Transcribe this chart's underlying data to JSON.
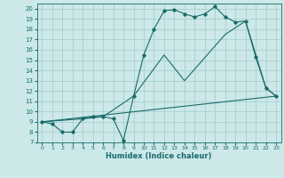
{
  "title": "",
  "xlabel": "Humidex (Indice chaleur)",
  "bg_color": "#cce8e8",
  "grid_color": "#aacfcf",
  "line_color": "#1a6b6b",
  "xlim": [
    -0.5,
    23.5
  ],
  "ylim": [
    7,
    20.5
  ],
  "xticks": [
    0,
    1,
    2,
    3,
    4,
    5,
    6,
    7,
    8,
    9,
    10,
    11,
    12,
    13,
    14,
    15,
    16,
    17,
    18,
    19,
    20,
    21,
    22,
    23
  ],
  "yticks": [
    7,
    8,
    9,
    10,
    11,
    12,
    13,
    14,
    15,
    16,
    17,
    18,
    19,
    20
  ],
  "series1_x": [
    0,
    1,
    2,
    3,
    4,
    5,
    6,
    7,
    8,
    9,
    10,
    11,
    12,
    13,
    14,
    15,
    16,
    17,
    18,
    19,
    20,
    21,
    22,
    23
  ],
  "series1_y": [
    9.0,
    8.8,
    8.0,
    8.0,
    9.3,
    9.5,
    9.5,
    9.3,
    7.2,
    11.5,
    15.5,
    18.0,
    19.8,
    19.9,
    19.5,
    19.2,
    19.5,
    20.2,
    19.2,
    18.7,
    18.8,
    15.3,
    12.3,
    11.5
  ],
  "series2_x": [
    0,
    4,
    6,
    9,
    12,
    14,
    18,
    20,
    22,
    23
  ],
  "series2_y": [
    9.0,
    9.3,
    9.5,
    11.5,
    15.5,
    13.0,
    17.5,
    18.8,
    12.3,
    11.5
  ],
  "series3_x": [
    0,
    23
  ],
  "series3_y": [
    9.0,
    11.5
  ]
}
